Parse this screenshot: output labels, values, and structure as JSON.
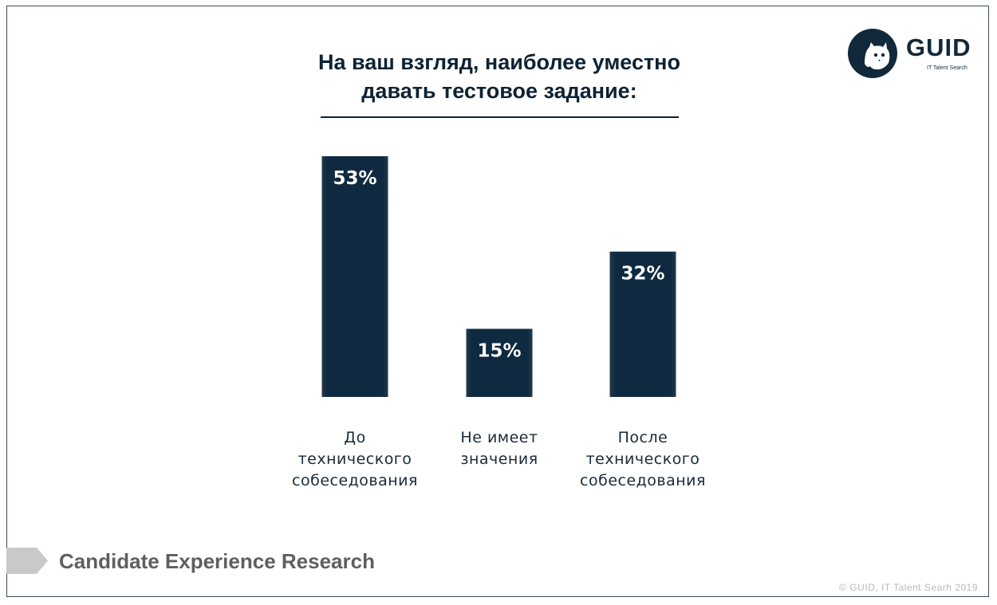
{
  "slide": {
    "title": "На ваш взгляд, наиболее уместно\nдавать тестовое задание:",
    "footer_title": "Candidate Experience Research",
    "copyright": "© GUID, IT Talent Searh 2019"
  },
  "logo": {
    "name": "GUID",
    "tagline": "IT Talent Search",
    "icon": "cat-logo-icon"
  },
  "colors": {
    "bar": "#0f2a40",
    "bar_dark": "#0b2033",
    "accent_gray": "#c9c9c9",
    "text_dark": "#0d2233"
  },
  "chart_data": {
    "type": "bar",
    "title": "На ваш взгляд, наиболее уместно давать тестовое задание:",
    "categories": [
      [
        "До",
        "технического",
        "собеседования"
      ],
      [
        "Не имеет",
        "значения"
      ],
      [
        "После",
        "технического",
        "собеседования"
      ]
    ],
    "values": [
      53,
      15,
      32
    ],
    "value_labels": [
      "53%",
      "15%",
      "32%"
    ],
    "unit": "%",
    "ylim": [
      0,
      53
    ],
    "grid": false,
    "legend": "none"
  }
}
